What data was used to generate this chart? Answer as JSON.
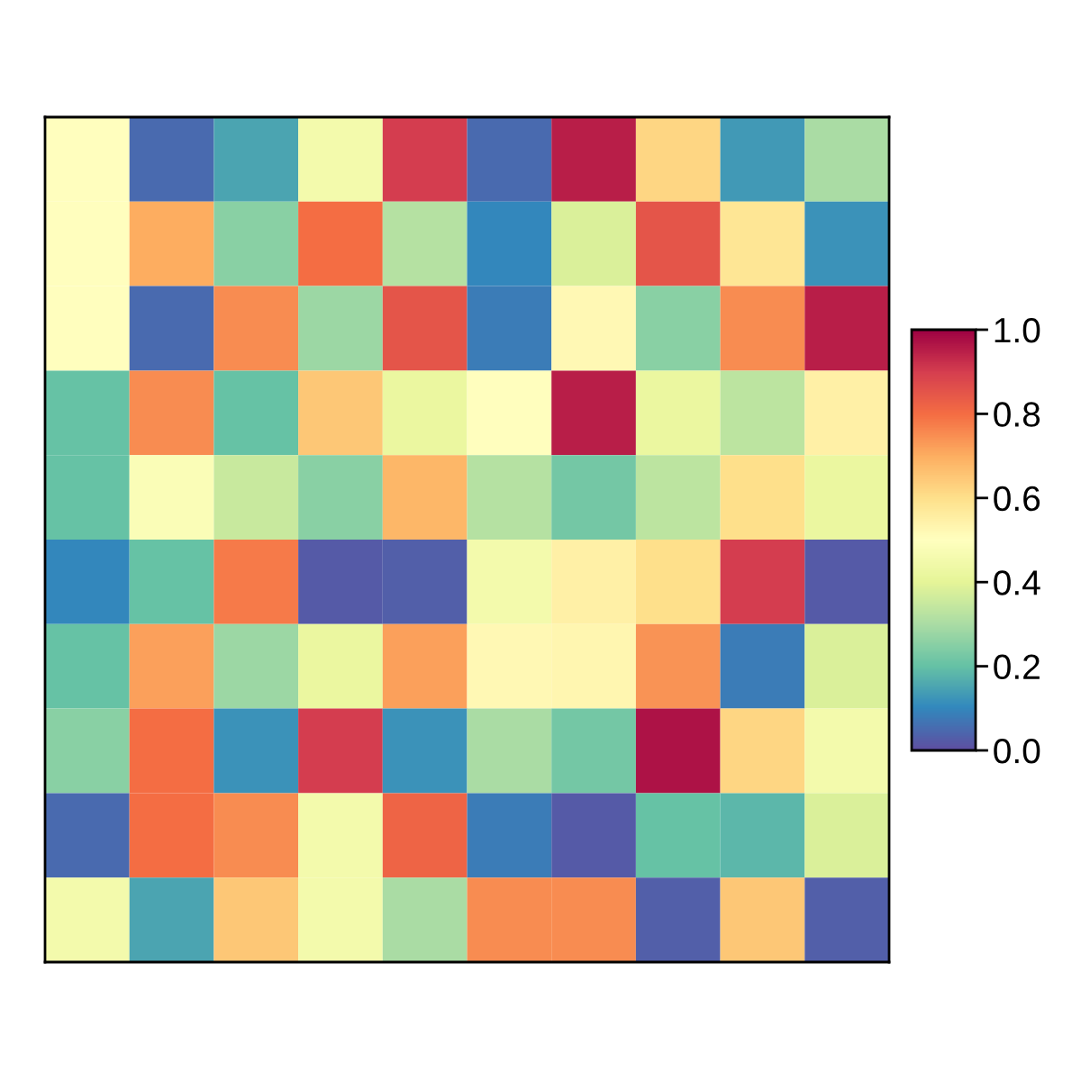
{
  "chart_data": {
    "type": "heatmap",
    "categories": [
      null,
      null,
      null,
      null,
      null,
      null,
      null,
      null,
      null,
      null
    ],
    "y_categories": [
      null,
      null,
      null,
      null,
      null,
      null,
      null,
      null,
      null,
      null
    ],
    "cells": [
      [
        0.5,
        0.05,
        0.15,
        0.45,
        0.9,
        0.05,
        0.95,
        0.62,
        0.13,
        0.3
      ],
      [
        0.5,
        0.7,
        0.25,
        0.8,
        0.32,
        0.1,
        0.38,
        0.85,
        0.58,
        0.12
      ],
      [
        0.5,
        0.05,
        0.75,
        0.28,
        0.85,
        0.08,
        0.52,
        0.25,
        0.75,
        0.95
      ],
      [
        0.2,
        0.75,
        0.2,
        0.65,
        0.42,
        0.5,
        0.95,
        0.42,
        0.33,
        0.55
      ],
      [
        0.2,
        0.48,
        0.35,
        0.25,
        0.68,
        0.32,
        0.22,
        0.33,
        0.6,
        0.42
      ],
      [
        0.1,
        0.2,
        0.78,
        0.02,
        0.03,
        0.45,
        0.55,
        0.6,
        0.9,
        0.02
      ],
      [
        0.2,
        0.72,
        0.28,
        0.42,
        0.72,
        0.52,
        0.53,
        0.74,
        0.08,
        0.38
      ],
      [
        0.25,
        0.8,
        0.12,
        0.9,
        0.12,
        0.3,
        0.22,
        0.97,
        0.62,
        0.45
      ],
      [
        0.05,
        0.8,
        0.75,
        0.45,
        0.82,
        0.08,
        0.02,
        0.2,
        0.18,
        0.38
      ],
      [
        0.45,
        0.15,
        0.65,
        0.45,
        0.3,
        0.75,
        0.75,
        0.03,
        0.65,
        0.03
      ]
    ],
    "clim": [
      0,
      1
    ],
    "cticks": [
      {
        "value": 0,
        "label": "0.0"
      },
      {
        "value": 0.2,
        "label": "0.2"
      },
      {
        "value": 0.4,
        "label": "0.4"
      },
      {
        "value": 0.6,
        "label": "0.6"
      },
      {
        "value": 0.8,
        "label": "0.8"
      },
      {
        "value": 1,
        "label": "1.0"
      }
    ],
    "tick_labels": false
  }
}
